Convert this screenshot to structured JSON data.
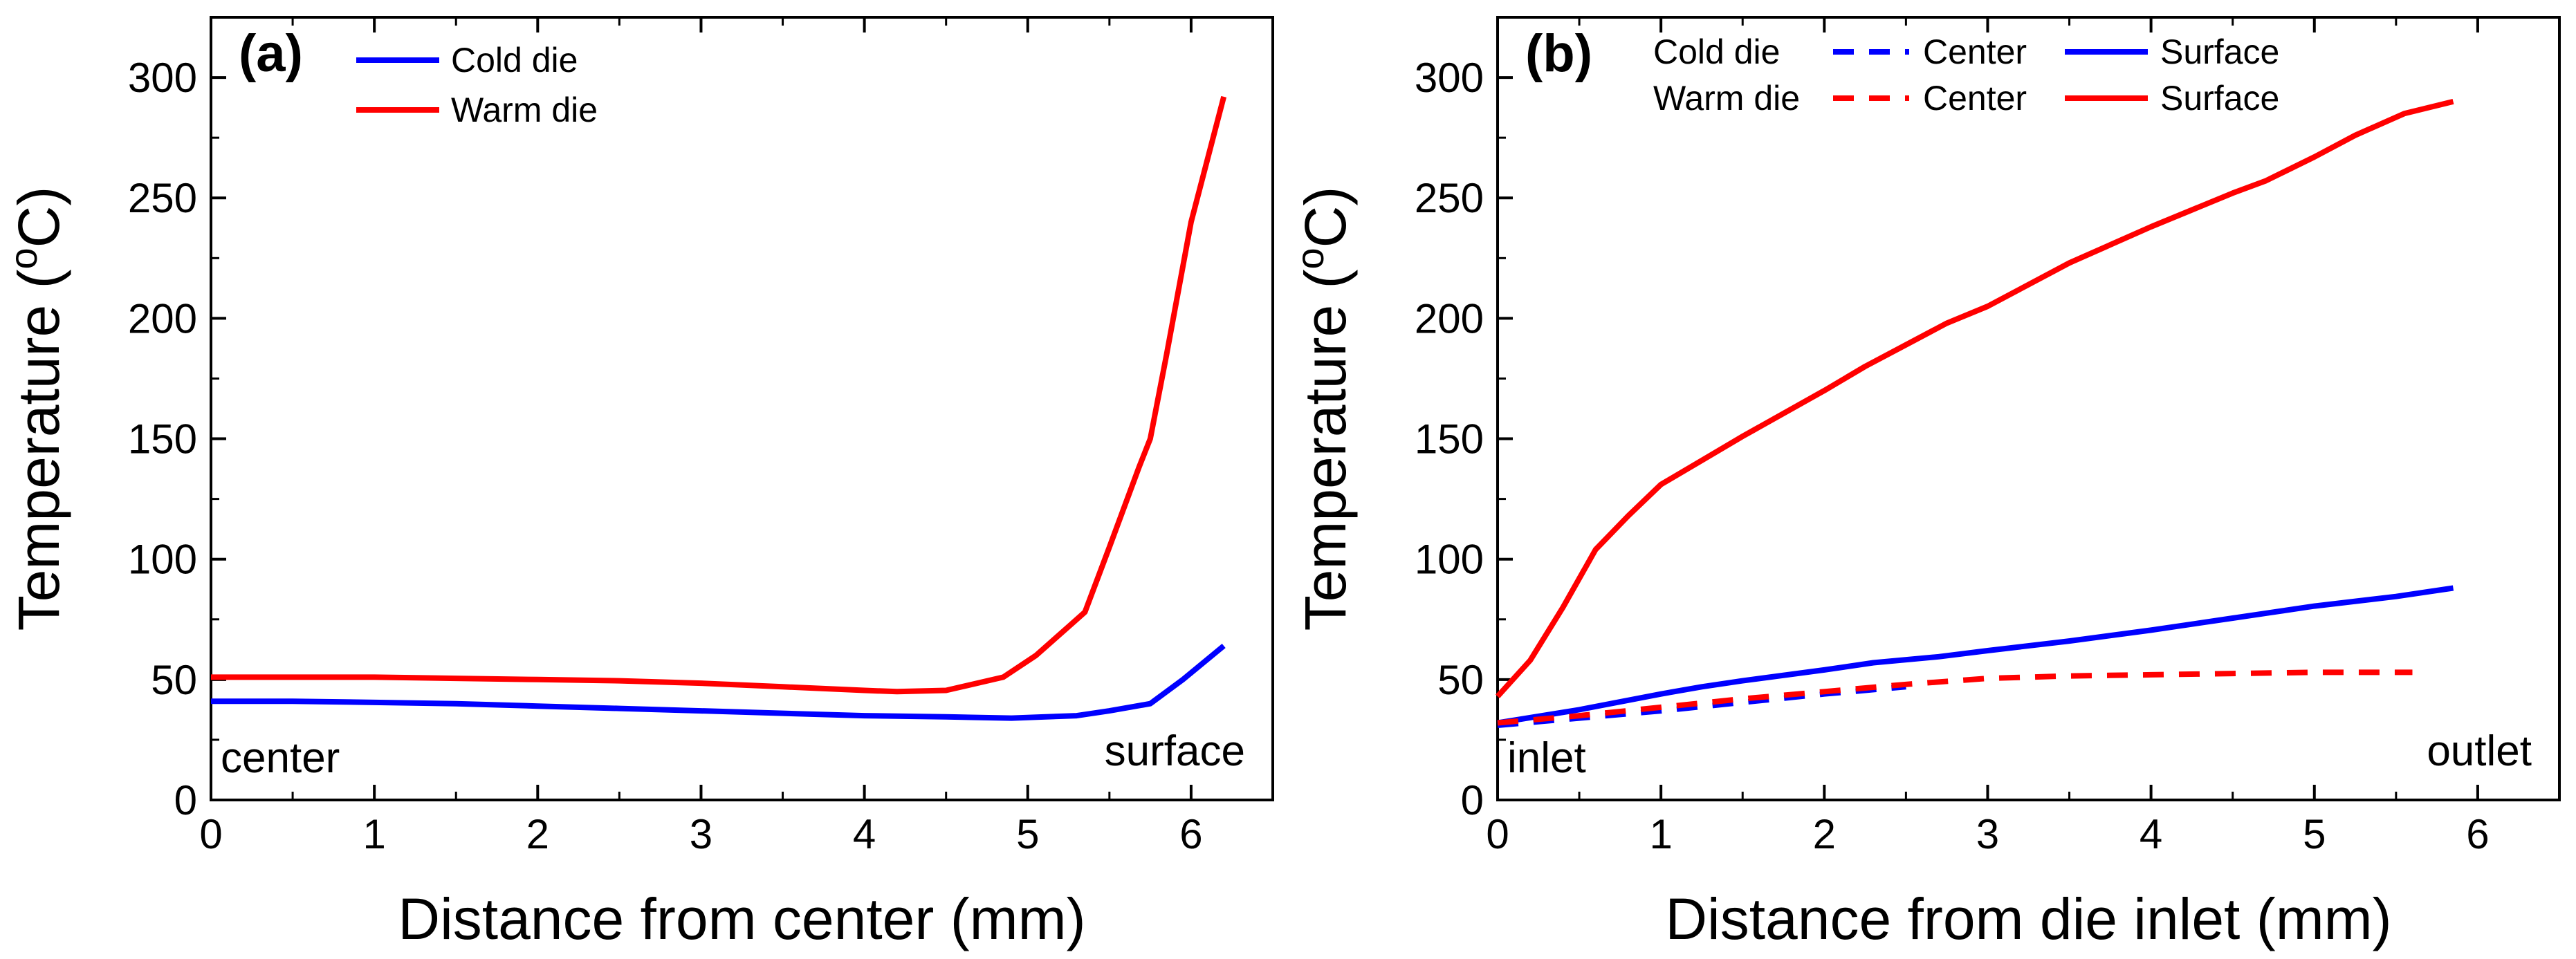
{
  "chart_data": [
    {
      "type": "line",
      "panel_label": "(a)",
      "xlabel": "Distance from center (mm)",
      "ylabel_main": "Temperature (",
      "ylabel_sup": "o",
      "ylabel_end": "C)",
      "xlim": [
        0,
        6.5
      ],
      "ylim": [
        0,
        325
      ],
      "xticks": [
        0,
        1,
        2,
        3,
        4,
        5,
        6
      ],
      "yticks": [
        0,
        50,
        100,
        150,
        200,
        250,
        300
      ],
      "legend_position": "top-left",
      "series": [
        {
          "name": "Cold die",
          "color": "#0000ff",
          "dash": "solid",
          "x": [
            0,
            0.5,
            1,
            1.5,
            2,
            2.5,
            3,
            3.5,
            4,
            4.5,
            4.9,
            5.3,
            5.5,
            5.75,
            5.95,
            6.2
          ],
          "y": [
            41,
            41,
            40.5,
            40,
            39,
            38,
            37,
            36,
            35,
            34.5,
            34,
            35,
            37,
            40,
            50,
            64
          ]
        },
        {
          "name": "Warm die",
          "color": "#ff0000",
          "dash": "solid",
          "x": [
            0,
            0.5,
            1,
            1.5,
            2,
            2.5,
            3,
            3.5,
            4,
            4.2,
            4.5,
            4.85,
            5.05,
            5.25,
            5.35,
            5.5,
            5.68,
            5.75,
            5.85,
            6.0,
            6.2
          ],
          "y": [
            51,
            51,
            51,
            50.5,
            50,
            49.5,
            48.5,
            47,
            45.5,
            45,
            45.5,
            51,
            60,
            72,
            78,
            105,
            138,
            150,
            185,
            240,
            292
          ]
        }
      ],
      "annotations": [
        "center",
        "surface"
      ]
    },
    {
      "type": "line",
      "panel_label": "(b)",
      "xlabel": "Distance from die inlet (mm)",
      "ylabel_main": "Temperature (",
      "ylabel_sup": "o",
      "ylabel_end": "C)",
      "xlim": [
        0,
        6.5
      ],
      "ylim": [
        0,
        325
      ],
      "xticks": [
        0,
        1,
        2,
        3,
        4,
        5,
        6
      ],
      "yticks": [
        0,
        50,
        100,
        150,
        200,
        250,
        300
      ],
      "legend_position": "top",
      "legend_rows": [
        {
          "group": "Cold die",
          "center": "Center",
          "surface": "Surface",
          "color": "#0000ff"
        },
        {
          "group": "Warm die",
          "center": "Center",
          "surface": "Surface",
          "color": "#ff0000"
        }
      ],
      "series": [
        {
          "name": "Cold die Center",
          "color": "#0000ff",
          "dash": "dashed",
          "x": [
            0,
            0.5,
            1,
            1.5,
            2,
            2.5
          ],
          "y": [
            31,
            34,
            37,
            40.5,
            44,
            47
          ]
        },
        {
          "name": "Cold die Surface",
          "color": "#0000ff",
          "dash": "solid",
          "x": [
            0,
            0.5,
            1,
            1.25,
            1.5,
            2,
            2.3,
            2.7,
            3,
            3.5,
            4,
            4.5,
            5,
            5.5,
            5.85
          ],
          "y": [
            32,
            37.5,
            44,
            47,
            49.5,
            54,
            57,
            59.5,
            62,
            66,
            70.5,
            75.5,
            80.5,
            84.5,
            88
          ]
        },
        {
          "name": "Warm die Center",
          "color": "#ff0000",
          "dash": "dashed",
          "x": [
            0,
            0.5,
            1,
            1.5,
            2,
            2.5,
            3,
            3.5,
            4,
            4.5,
            5,
            5.6
          ],
          "y": [
            32,
            35,
            38.5,
            42,
            45,
            48,
            50.5,
            51.5,
            52,
            52.5,
            53,
            53
          ]
        },
        {
          "name": "Warm die Surface",
          "color": "#ff0000",
          "dash": "solid",
          "x": [
            0,
            0.2,
            0.4,
            0.6,
            0.8,
            1,
            1.25,
            1.5,
            2,
            2.25,
            2.5,
            2.75,
            3,
            3.5,
            4,
            4.5,
            4.7,
            5,
            5.25,
            5.55,
            5.85
          ],
          "y": [
            43,
            58,
            80,
            104,
            118,
            131,
            141,
            151,
            170,
            180,
            189,
            198,
            205,
            223,
            238,
            252,
            257,
            267,
            276,
            285,
            290
          ]
        }
      ],
      "annotations": [
        "inlet",
        "outlet"
      ]
    }
  ]
}
